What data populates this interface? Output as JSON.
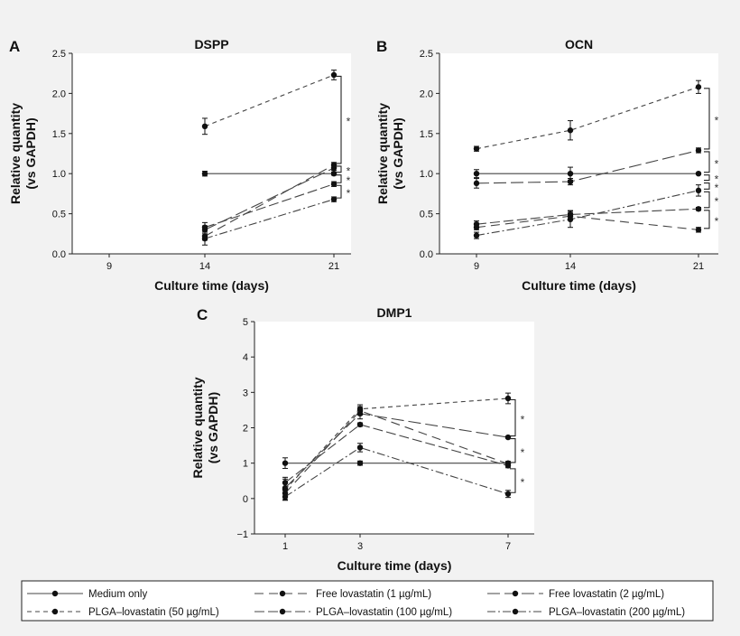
{
  "legend": {
    "items": [
      {
        "label": "Medium only",
        "dash": ""
      },
      {
        "label": "Free lovastatin (1 µg/mL)",
        "dash": "10,6"
      },
      {
        "label": "Free lovastatin (2 µg/mL)",
        "dash": "14,5"
      },
      {
        "label": "PLGA–lovastatin (50 µg/mL)",
        "dash": "5,4"
      },
      {
        "label": "PLGA–lovastatin (100 µg/mL)",
        "dash": "11,4"
      },
      {
        "label": "PLGA–lovastatin (200 µg/mL)",
        "dash": "9,3,2,3"
      }
    ]
  },
  "chart_data": [
    {
      "panel": "A",
      "type": "line",
      "title": "DSPP",
      "xlabel": "Culture time (days)",
      "ylabel": [
        "Relative quantity",
        "(vs GAPDH)"
      ],
      "categories": [
        "9",
        "14",
        "21"
      ],
      "ylim": [
        0,
        2.5
      ],
      "yticks": [
        "0.0",
        "0.5",
        "1.0",
        "1.5",
        "2.0",
        "2.5"
      ],
      "series": [
        {
          "name": "Medium only",
          "x": [
            "14",
            "21"
          ],
          "values": [
            1.0,
            1.0
          ],
          "err": [
            0.03,
            0.02
          ]
        },
        {
          "name": "Free lovastatin (1 µg/mL)",
          "x": [
            "14",
            "21"
          ],
          "values": [
            0.22,
            1.11
          ],
          "err": [
            0.05,
            0.03
          ]
        },
        {
          "name": "Free lovastatin (2 µg/mL)",
          "x": [
            "14",
            "21"
          ],
          "values": [
            0.3,
            1.07
          ],
          "err": [
            0.05,
            0.03
          ]
        },
        {
          "name": "PLGA–lovastatin (50 µg/mL)",
          "x": [
            "14",
            "21"
          ],
          "values": [
            1.59,
            2.23
          ],
          "err": [
            0.1,
            0.06
          ]
        },
        {
          "name": "PLGA–lovastatin (100 µg/mL)",
          "x": [
            "14",
            "21"
          ],
          "values": [
            0.33,
            0.87
          ],
          "err": [
            0.06,
            0.03
          ]
        },
        {
          "name": "PLGA–lovastatin (200 µg/mL)",
          "x": [
            "14",
            "21"
          ],
          "values": [
            0.19,
            0.68
          ],
          "err": [
            0.08,
            0.03
          ]
        }
      ],
      "significance": [
        {
          "from": 2.23,
          "to": 1.11,
          "label": "*"
        },
        {
          "from": 1.11,
          "to": 1.0,
          "label": "*"
        },
        {
          "from": 1.0,
          "to": 0.87,
          "label": "*"
        },
        {
          "from": 0.87,
          "to": 0.68,
          "label": "*"
        }
      ]
    },
    {
      "panel": "B",
      "type": "line",
      "title": "OCN",
      "xlabel": "Culture time (days)",
      "ylabel": [
        "Relative quantity",
        "(vs GAPDH)"
      ],
      "categories": [
        "9",
        "14",
        "21"
      ],
      "ylim": [
        0,
        2.5
      ],
      "yticks": [
        "0.0",
        "0.5",
        "1.0",
        "1.5",
        "2.0",
        "2.5"
      ],
      "series": [
        {
          "name": "Medium only",
          "x": [
            "9",
            "14",
            "21"
          ],
          "values": [
            1.0,
            1.0,
            1.0
          ],
          "err": [
            0.05,
            0.08,
            0.01
          ]
        },
        {
          "name": "Free lovastatin (1 µg/mL)",
          "x": [
            "9",
            "14",
            "21"
          ],
          "values": [
            0.33,
            0.47,
            0.3
          ],
          "err": [
            0.03,
            0.04,
            0.03
          ]
        },
        {
          "name": "Free lovastatin (2 µg/mL)",
          "x": [
            "9",
            "14",
            "21"
          ],
          "values": [
            0.88,
            0.9,
            1.29
          ],
          "err": [
            0.06,
            0.04,
            0.03
          ]
        },
        {
          "name": "PLGA–lovastatin (50 µg/mL)",
          "x": [
            "9",
            "14",
            "21"
          ],
          "values": [
            1.31,
            1.54,
            2.08
          ],
          "err": [
            0.03,
            0.12,
            0.08
          ]
        },
        {
          "name": "PLGA–lovastatin (100 µg/mL)",
          "x": [
            "9",
            "14",
            "21"
          ],
          "values": [
            0.37,
            0.49,
            0.56
          ],
          "err": [
            0.04,
            0.05,
            0.02
          ]
        },
        {
          "name": "PLGA–lovastatin (200 µg/mL)",
          "x": [
            "9",
            "14",
            "21"
          ],
          "values": [
            0.23,
            0.43,
            0.79
          ],
          "err": [
            0.04,
            0.1,
            0.07
          ]
        }
      ],
      "significance": [
        {
          "from": 2.08,
          "to": 1.29,
          "label": "*"
        },
        {
          "from": 1.29,
          "to": 1.0,
          "label": "*"
        },
        {
          "from": 1.0,
          "to": 0.9,
          "label": "*"
        },
        {
          "from": 0.9,
          "to": 0.79,
          "label": "*"
        },
        {
          "from": 0.79,
          "to": 0.56,
          "label": "*"
        },
        {
          "from": 0.56,
          "to": 0.3,
          "label": "*"
        }
      ]
    },
    {
      "panel": "C",
      "type": "line",
      "title": "DMP1",
      "xlabel": "Culture time (days)",
      "ylabel": [
        "Relative quantity",
        "(vs GAPDH)"
      ],
      "categories": [
        "1",
        "3",
        "7"
      ],
      "ylim": [
        -1,
        5
      ],
      "yticks": [
        "−1",
        "0",
        "1",
        "2",
        "3",
        "4",
        "5"
      ],
      "series": [
        {
          "name": "Medium only",
          "x": [
            "1",
            "3",
            "7"
          ],
          "values": [
            1.0,
            1.0,
            1.0
          ],
          "err": [
            0.15,
            0.06,
            0.05
          ]
        },
        {
          "name": "Free lovastatin (1 µg/mL)",
          "x": [
            "1",
            "3",
            "7"
          ],
          "values": [
            0.15,
            2.48,
            0.98
          ],
          "err": [
            0.12,
            0.12,
            0.05
          ]
        },
        {
          "name": "Free lovastatin (2 µg/mL)",
          "x": [
            "1",
            "3",
            "7"
          ],
          "values": [
            0.3,
            2.4,
            1.73
          ],
          "err": [
            0.15,
            0.15,
            0.03
          ]
        },
        {
          "name": "PLGA–lovastatin (50 µg/mL)",
          "x": [
            "1",
            "3",
            "7"
          ],
          "values": [
            0.25,
            2.53,
            2.83
          ],
          "err": [
            0.3,
            0.12,
            0.15
          ]
        },
        {
          "name": "PLGA–lovastatin (100 µg/mL)",
          "x": [
            "1",
            "3",
            "7"
          ],
          "values": [
            0.45,
            2.09,
            0.93
          ],
          "err": [
            0.15,
            0.05,
            0.06
          ]
        },
        {
          "name": "PLGA–lovastatin (200 µg/mL)",
          "x": [
            "1",
            "3",
            "7"
          ],
          "values": [
            0.05,
            1.44,
            0.13
          ],
          "err": [
            0.08,
            0.12,
            0.1
          ]
        }
      ],
      "significance": [
        {
          "from": 2.83,
          "to": 1.73,
          "label": "*"
        },
        {
          "from": 1.73,
          "to": 0.98,
          "label": "*"
        },
        {
          "from": 0.88,
          "to": 0.13,
          "label": "*"
        }
      ]
    }
  ]
}
